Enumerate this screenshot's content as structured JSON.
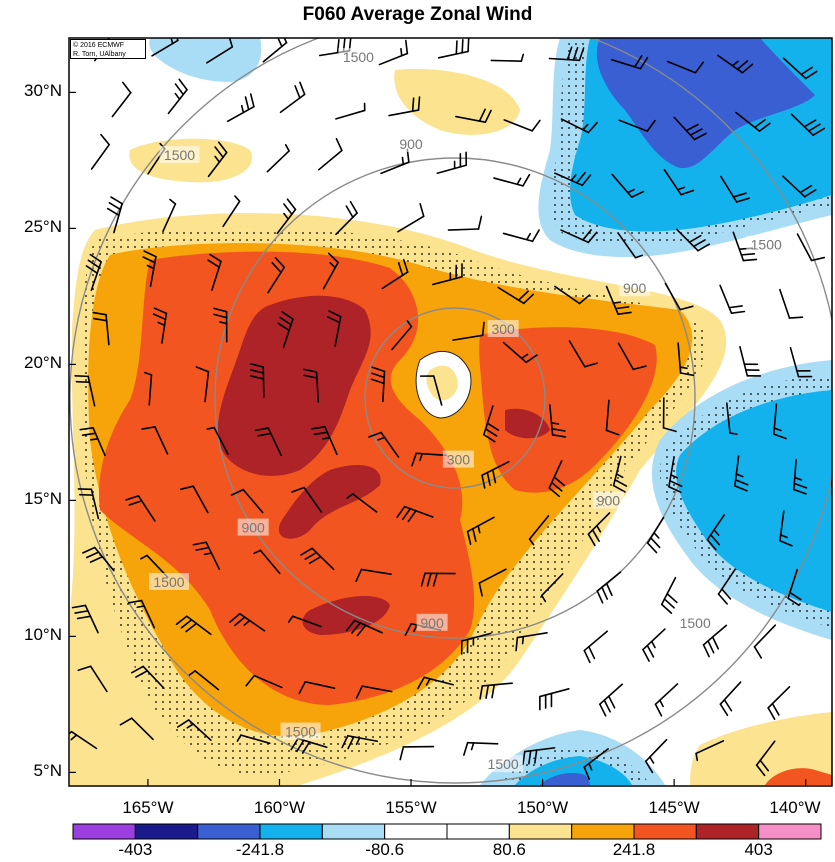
{
  "title": "F060 Average Zonal Wind",
  "credit": {
    "line1": "© 2016 ECMWF",
    "line2": "R. Torn, UAlbany"
  },
  "map": {
    "lon_range": [
      -168,
      -139
    ],
    "lat_range": [
      4.5,
      32
    ],
    "lat_ticks": [
      {
        "value": 30,
        "label": "30°N"
      },
      {
        "value": 25,
        "label": "25°N"
      },
      {
        "value": 20,
        "label": "20°N"
      },
      {
        "value": 15,
        "label": "15°N"
      },
      {
        "value": 10,
        "label": "10°N"
      },
      {
        "value": 5,
        "label": "5°N"
      }
    ],
    "lon_ticks": [
      {
        "value": -165,
        "label": "165°W"
      },
      {
        "value": -160,
        "label": "160°W"
      },
      {
        "value": -155,
        "label": "155°W"
      },
      {
        "value": -150,
        "label": "150°W"
      },
      {
        "value": -145,
        "label": "145°W"
      },
      {
        "value": -140,
        "label": "140°W"
      }
    ],
    "range_rings": [
      {
        "label": "900",
        "lon": -155.0,
        "lat": 28.1
      },
      {
        "label": "1500",
        "lon": -157.0,
        "lat": 31.3
      },
      {
        "label": "1500",
        "lon": -163.8,
        "lat": 27.7
      },
      {
        "label": "1500",
        "lon": -141.5,
        "lat": 24.4
      },
      {
        "label": "900",
        "lon": -146.5,
        "lat": 22.8
      },
      {
        "label": "300",
        "lon": -151.5,
        "lat": 21.3
      },
      {
        "label": "300",
        "lon": -153.2,
        "lat": 16.5
      },
      {
        "label": "900",
        "lon": -161.0,
        "lat": 14.0
      },
      {
        "label": "900",
        "lon": -147.5,
        "lat": 15.0
      },
      {
        "label": "900",
        "lon": -154.2,
        "lat": 10.5
      },
      {
        "label": "1500",
        "lon": -164.2,
        "lat": 12.0
      },
      {
        "label": "1500",
        "lon": -144.2,
        "lat": 10.5
      },
      {
        "label": "1500",
        "lon": -159.2,
        "lat": 6.5
      },
      {
        "label": "1500",
        "lon": -151.5,
        "lat": 5.3
      }
    ]
  },
  "colorbar": {
    "colors": [
      "#9b3fe0",
      "#1a1a8c",
      "#3a5fd2",
      "#14b2ec",
      "#a9dcf5",
      "#ffffff",
      "#ffffff",
      "#fbe38f",
      "#f7a30a",
      "#f2551f",
      "#ad2327",
      "#f78fc7"
    ],
    "labels": [
      {
        "value": "-403",
        "boundary": 1
      },
      {
        "value": "-241.8",
        "boundary": 3
      },
      {
        "value": "-80.6",
        "boundary": 5
      },
      {
        "value": "80.6",
        "boundary": 7
      },
      {
        "value": "241.8",
        "boundary": 9
      },
      {
        "value": "403",
        "boundary": 11
      }
    ]
  },
  "field_colors": {
    "neg_light": "#a9dcf5",
    "neg_mid": "#14b2ec",
    "neg_dark": "#3a5fd2",
    "pos_light": "#fbe38f",
    "pos_mid": "#f7a30a",
    "pos_strong": "#f2551f",
    "pos_max": "#ad2327"
  }
}
